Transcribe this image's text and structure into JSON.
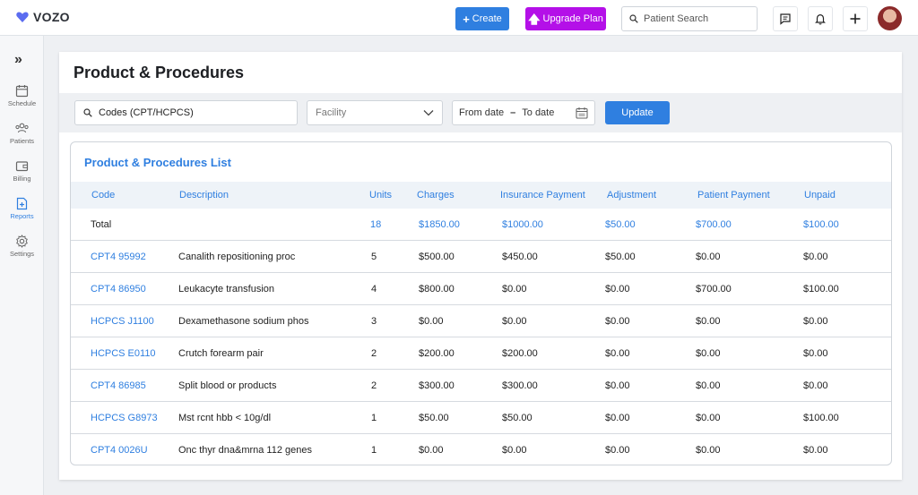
{
  "app": {
    "logo_text": "VOZO"
  },
  "header": {
    "create_label": "Create",
    "upgrade_label": "Upgrade Plan",
    "search_placeholder": "Patient Search"
  },
  "sidebar": {
    "items": [
      {
        "label": "Schedule",
        "icon": "calendar-icon"
      },
      {
        "label": "Patients",
        "icon": "users-icon"
      },
      {
        "label": "Billing",
        "icon": "wallet-icon"
      },
      {
        "label": "Reports",
        "icon": "report-icon",
        "active": true
      },
      {
        "label": "Settings",
        "icon": "gear-icon"
      }
    ]
  },
  "page": {
    "title": "Product & Procedures"
  },
  "filters": {
    "codes_value": "Codes (CPT/HCPCS)",
    "facility_placeholder": "Facility",
    "from_date": "From date",
    "to_date": "To date",
    "update_label": "Update"
  },
  "list": {
    "title": "Product & Procedures List",
    "columns": [
      "Code",
      "Description",
      "Units",
      "Charges",
      "Insurance Payment",
      "Adjustment",
      "Patient Payment",
      "Unpaid"
    ],
    "total": {
      "label": "Total",
      "units": "18",
      "charges": "$1850.00",
      "insurance": "$1000.00",
      "adjustment": "$50.00",
      "patient": "$700.00",
      "unpaid": "$100.00"
    },
    "rows": [
      {
        "code": "CPT4 95992",
        "description": "Canalith repositioning proc",
        "units": "5",
        "charges": "$500.00",
        "insurance": "$450.00",
        "adjustment": "$50.00",
        "patient": "$0.00",
        "unpaid": "$0.00"
      },
      {
        "code": "CPT4 86950",
        "description": "Leukacyte transfusion",
        "units": "4",
        "charges": "$800.00",
        "insurance": "$0.00",
        "adjustment": "$0.00",
        "patient": "$700.00",
        "unpaid": "$100.00"
      },
      {
        "code": "HCPCS  J1100",
        "description": "Dexamethasone sodium phos",
        "units": "3",
        "charges": "$0.00",
        "insurance": "$0.00",
        "adjustment": "$0.00",
        "patient": "$0.00",
        "unpaid": "$0.00"
      },
      {
        "code": "HCPCS E0110",
        "description": "Crutch forearm pair",
        "units": "2",
        "charges": "$200.00",
        "insurance": "$200.00",
        "adjustment": "$0.00",
        "patient": "$0.00",
        "unpaid": "$0.00"
      },
      {
        "code": "CPT4 86985",
        "description": "Split blood or products",
        "units": "2",
        "charges": "$300.00",
        "insurance": "$300.00",
        "adjustment": "$0.00",
        "patient": "$0.00",
        "unpaid": "$0.00"
      },
      {
        "code": "HCPCS G8973",
        "description": "Mst rcnt hbb < 10g/dl",
        "units": "1",
        "charges": "$50.00",
        "insurance": "$50.00",
        "adjustment": "$0.00",
        "patient": "$0.00",
        "unpaid": "$100.00"
      },
      {
        "code": "CPT4 0026U",
        "description": "Onc thyr dna&mrna 112 genes",
        "units": "1",
        "charges": "$0.00",
        "insurance": "$0.00",
        "adjustment": "$0.00",
        "patient": "$0.00",
        "unpaid": "$0.00"
      }
    ]
  },
  "colors": {
    "accent": "#2f7fe0",
    "upgrade": "#b410e8",
    "logo": "#5b6cf0"
  }
}
